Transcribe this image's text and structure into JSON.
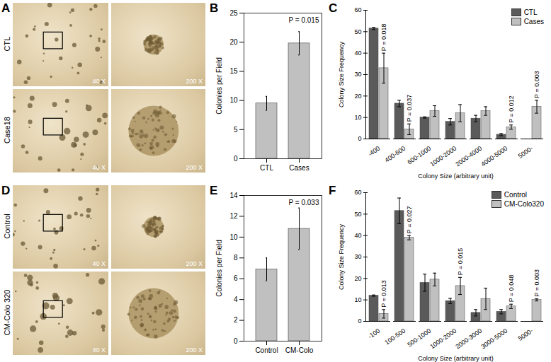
{
  "image_panels": [
    {
      "title": "A",
      "rows": [
        {
          "label": "CTL",
          "images": [
            "40 X",
            "200 X"
          ]
        },
        {
          "label": "Case18",
          "images": [
            "40 X",
            "200 X"
          ]
        }
      ]
    },
    {
      "title": "D",
      "rows": [
        {
          "label": "Control",
          "images": [
            "40 X",
            "200 X"
          ]
        },
        {
          "label": "CM-Colo 320",
          "images": [
            "40 X",
            "200 X"
          ]
        }
      ]
    }
  ],
  "chart_data": [
    {
      "type": "bar",
      "title": "B",
      "categories": [
        "CTL",
        "Cases"
      ],
      "values": [
        9.5,
        19.8
      ],
      "errors": [
        1.2,
        2.0
      ],
      "color": "#c0c0c0",
      "y_label": "Colonies per Field",
      "ylim": [
        0,
        25
      ],
      "yticks": [
        0,
        5,
        10,
        15,
        20,
        25
      ],
      "annotations": [
        {
          "text": "P = 0.015"
        }
      ]
    },
    {
      "type": "grouped_bar",
      "title": "C",
      "categories": [
        "-400",
        "400-600",
        "600-1000",
        "1000-2000",
        "2000-4000",
        "4000-5000",
        "5000-"
      ],
      "series": [
        {
          "name": "CTL",
          "color": "#5a5a5a",
          "values": [
            51.5,
            16.5,
            10,
            8,
            9.5,
            2,
            0
          ],
          "errors": [
            0.5,
            1.5,
            0.3,
            1.5,
            1.5,
            0.5,
            0
          ]
        },
        {
          "name": "Cases",
          "color": "#c0c0c0",
          "values": [
            33,
            4.5,
            13,
            12,
            13,
            5.5,
            15
          ],
          "errors": [
            7,
            2.5,
            2.5,
            4,
            2,
            1,
            3
          ]
        }
      ],
      "x_label": "Colony Size (arbitrary unit)",
      "y_label": "Colony Size Frequency",
      "ylim": [
        0,
        60
      ],
      "yticks": [
        0,
        10,
        20,
        30,
        40,
        50,
        60
      ],
      "legend": "top-right",
      "annotations": [
        {
          "text": "P = 0.018",
          "category": "-400"
        },
        {
          "text": "P = 0.037",
          "category": "400-600"
        },
        {
          "text": "P = 0.012",
          "category": "4000-5000"
        },
        {
          "text": "P = 0.003",
          "category": "5000-"
        }
      ]
    },
    {
      "type": "bar",
      "title": "E",
      "categories": [
        "Control",
        "CM-Colo"
      ],
      "values": [
        6.9,
        10.8
      ],
      "errors": [
        1.1,
        2.0
      ],
      "color": "#c0c0c0",
      "y_label": "Colonies per Field",
      "ylim": [
        0,
        14
      ],
      "yticks": [
        0,
        2,
        4,
        6,
        8,
        10,
        12,
        14
      ],
      "annotations": [
        {
          "text": "P = 0.033"
        }
      ]
    },
    {
      "type": "grouped_bar",
      "title": "F",
      "categories": [
        "-100",
        "100-500",
        "500-1000",
        "1000-2000",
        "2000-3000",
        "3000-5000",
        "5000-"
      ],
      "series": [
        {
          "name": "Control",
          "color": "#5a5a5a",
          "values": [
            12,
            51.5,
            18,
            9.5,
            4,
            4.5,
            0
          ],
          "errors": [
            0.3,
            6,
            4,
            1.2,
            1.5,
            1,
            0
          ]
        },
        {
          "name": "CM-Colo320",
          "color": "#c0c0c0",
          "values": [
            3.5,
            39,
            19.5,
            16.5,
            10.5,
            7,
            10
          ],
          "errors": [
            2,
            1,
            3,
            4,
            5,
            1,
            0.5
          ]
        }
      ],
      "x_label": "Colony Size (arbitrary unit)",
      "y_label": "Colony Size Frequency",
      "ylim": [
        0,
        60
      ],
      "yticks": [
        0,
        10,
        20,
        30,
        40,
        50,
        60
      ],
      "legend": "top-right",
      "annotations": [
        {
          "text": "P = 0.013",
          "category": "-100"
        },
        {
          "text": "P = 0.027",
          "category": "100-500"
        },
        {
          "text": "P = 0.015",
          "category": "1000-2000"
        },
        {
          "text": "P = 0.048",
          "category": "3000-5000"
        },
        {
          "text": "P = 0.003",
          "category": "5000-"
        }
      ]
    }
  ]
}
